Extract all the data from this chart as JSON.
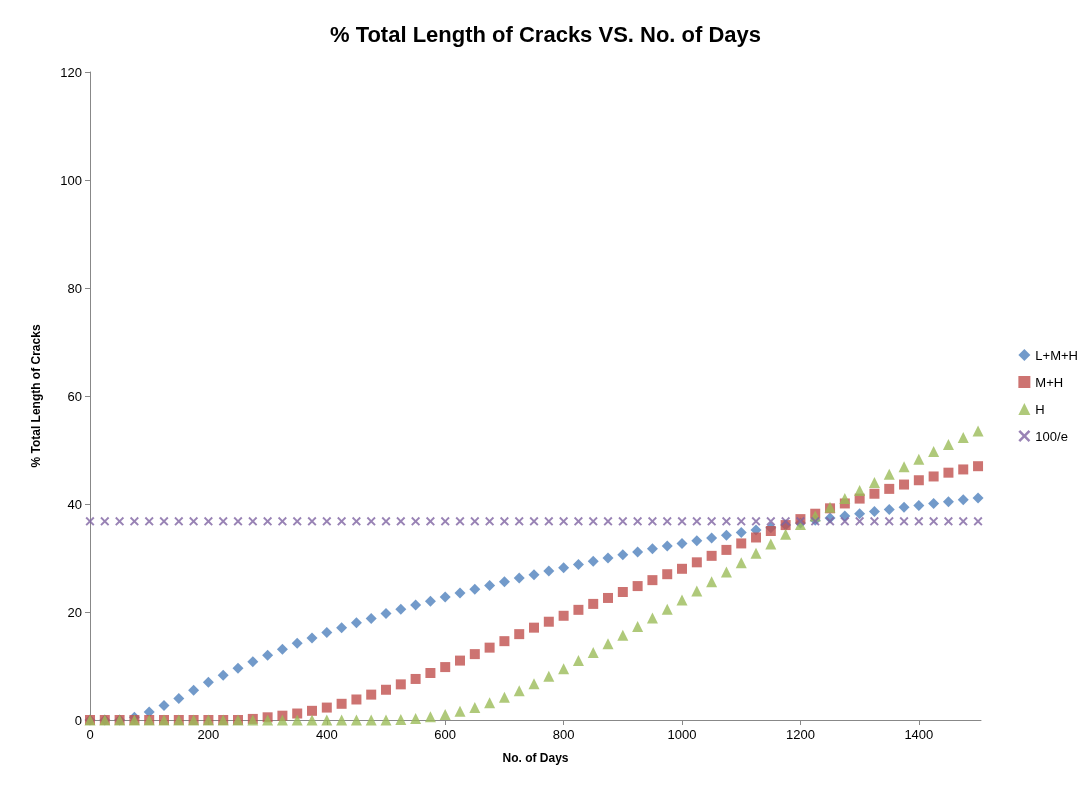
{
  "chart_data": {
    "type": "scatter",
    "title": "% Total Length of Cracks VS. No. of Days",
    "xlabel": "No. of Days",
    "ylabel": "% Total Length of Cracks",
    "x": [
      0,
      25,
      50,
      75,
      100,
      125,
      150,
      175,
      200,
      225,
      250,
      275,
      300,
      325,
      350,
      375,
      400,
      425,
      450,
      475,
      500,
      525,
      550,
      575,
      600,
      625,
      650,
      675,
      700,
      725,
      750,
      775,
      800,
      825,
      850,
      875,
      900,
      925,
      950,
      975,
      1000,
      1025,
      1050,
      1075,
      1100,
      1125,
      1150,
      1175,
      1200,
      1225,
      1250,
      1275,
      1300,
      1325,
      1350,
      1375,
      1400,
      1425,
      1450,
      1475,
      1500
    ],
    "xlim": [
      0,
      1505
    ],
    "xticks": [
      0,
      200,
      400,
      600,
      800,
      1000,
      1200,
      1400
    ],
    "ylim": [
      0,
      120
    ],
    "yticks": [
      0,
      20,
      40,
      60,
      80,
      100,
      120
    ],
    "grid": false,
    "legend": "right",
    "series": [
      {
        "name": "L+M+H",
        "color": "#4f81bd",
        "marker": "diamond",
        "values": [
          0,
          0,
          0,
          0.5,
          1.5,
          2.7,
          4,
          5.5,
          7,
          8.3,
          9.6,
          10.8,
          12,
          13.1,
          14.2,
          15.2,
          16.2,
          17.1,
          18,
          18.8,
          19.7,
          20.5,
          21.3,
          22,
          22.8,
          23.5,
          24.2,
          24.9,
          25.6,
          26.3,
          26.9,
          27.6,
          28.2,
          28.8,
          29.4,
          30,
          30.6,
          31.1,
          31.7,
          32.2,
          32.7,
          33.2,
          33.7,
          34.2,
          34.7,
          35.2,
          35.6,
          36.1,
          36.5,
          37,
          37.4,
          37.8,
          38.2,
          38.6,
          39,
          39.4,
          39.7,
          40.1,
          40.4,
          40.8,
          41.1
        ]
      },
      {
        "name": "M+H",
        "color": "#c0504d",
        "marker": "square",
        "values": [
          0,
          0,
          0,
          0,
          0,
          0,
          0,
          0,
          0,
          0,
          0,
          0.2,
          0.5,
          0.8,
          1.2,
          1.7,
          2.3,
          3,
          3.8,
          4.7,
          5.6,
          6.6,
          7.6,
          8.7,
          9.8,
          11,
          12.2,
          13.4,
          14.6,
          15.9,
          17.1,
          18.2,
          19.3,
          20.4,
          21.5,
          22.6,
          23.7,
          24.8,
          25.9,
          27,
          28,
          29.2,
          30.4,
          31.5,
          32.7,
          33.8,
          35,
          36.1,
          37.2,
          38.2,
          39.2,
          40.1,
          41,
          41.9,
          42.8,
          43.6,
          44.4,
          45.1,
          45.8,
          46.4,
          47
        ]
      },
      {
        "name": "H",
        "color": "#9bbb59",
        "marker": "triangle",
        "values": [
          0,
          0,
          0,
          0,
          0,
          0,
          0,
          0,
          0,
          0,
          0,
          0,
          0,
          0,
          0,
          0,
          0,
          0,
          0,
          0,
          0,
          0.1,
          0.3,
          0.6,
          1,
          1.6,
          2.3,
          3.2,
          4.2,
          5.4,
          6.7,
          8.1,
          9.5,
          11,
          12.5,
          14.1,
          15.7,
          17.3,
          18.9,
          20.5,
          22.2,
          23.9,
          25.6,
          27.4,
          29.1,
          30.9,
          32.6,
          34.4,
          36.2,
          37.8,
          39.4,
          41,
          42.5,
          44,
          45.5,
          46.9,
          48.3,
          49.7,
          51,
          52.3,
          53.5
        ]
      },
      {
        "name": "100/e",
        "color": "#8064a2",
        "marker": "cross",
        "values": [
          36.8,
          36.8,
          36.8,
          36.8,
          36.8,
          36.8,
          36.8,
          36.8,
          36.8,
          36.8,
          36.8,
          36.8,
          36.8,
          36.8,
          36.8,
          36.8,
          36.8,
          36.8,
          36.8,
          36.8,
          36.8,
          36.8,
          36.8,
          36.8,
          36.8,
          36.8,
          36.8,
          36.8,
          36.8,
          36.8,
          36.8,
          36.8,
          36.8,
          36.8,
          36.8,
          36.8,
          36.8,
          36.8,
          36.8,
          36.8,
          36.8,
          36.8,
          36.8,
          36.8,
          36.8,
          36.8,
          36.8,
          36.8,
          36.8,
          36.8,
          36.8,
          36.8,
          36.8,
          36.8,
          36.8,
          36.8,
          36.8,
          36.8,
          36.8,
          36.8,
          36.8
        ]
      }
    ]
  }
}
